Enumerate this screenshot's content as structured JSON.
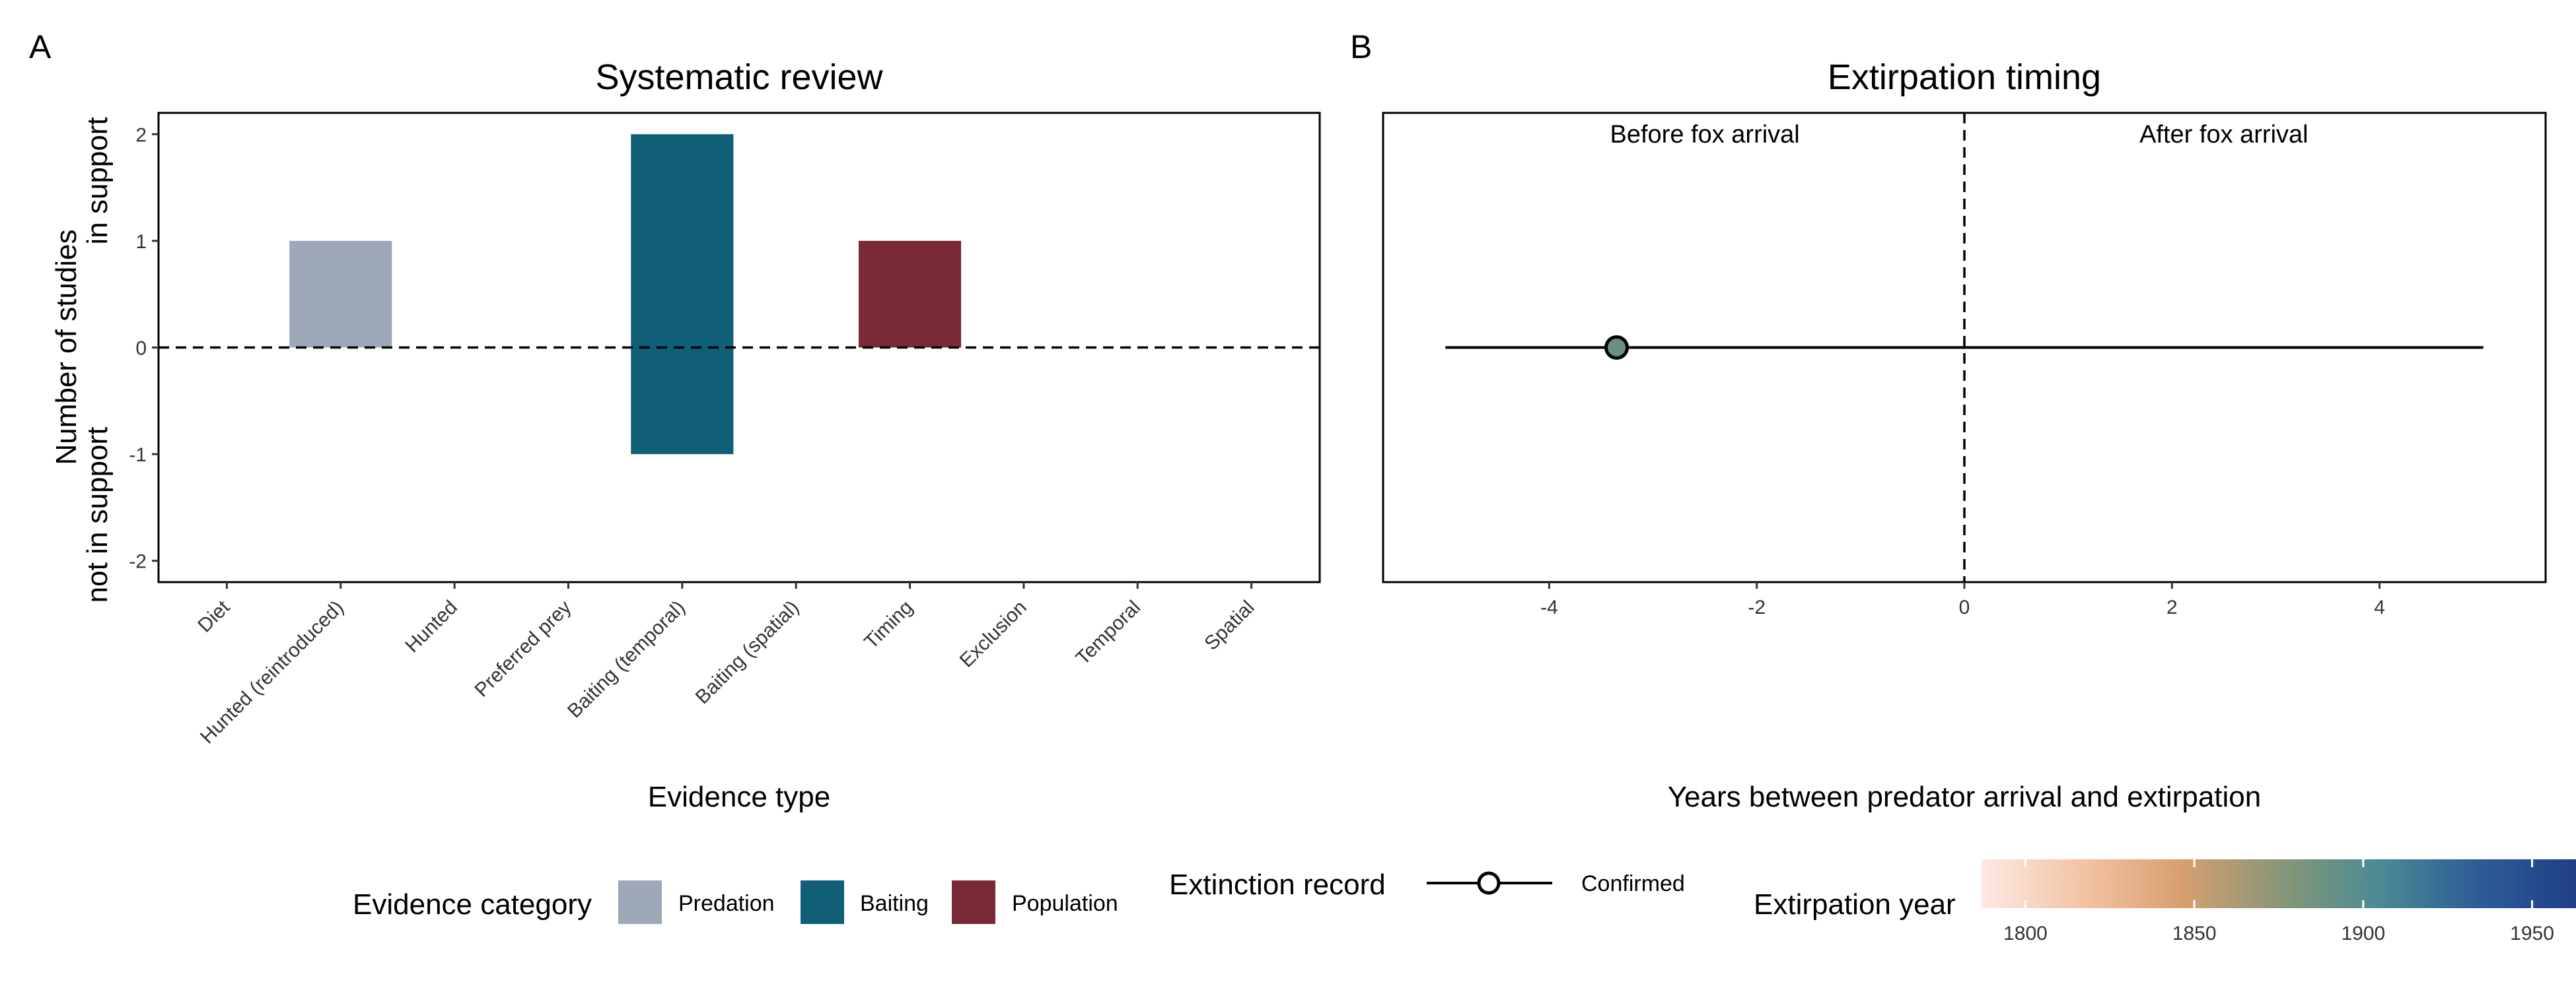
{
  "panels": {
    "a": {
      "tag": "A",
      "title": "Systematic review"
    },
    "b": {
      "tag": "B",
      "title": "Extirpation timing"
    }
  },
  "chart_data": [
    {
      "type": "bar",
      "title": "Systematic review",
      "xlabel": "Evidence type",
      "ylabel_top": "in support",
      "ylabel_mid": "Number of studies",
      "ylabel_bottom": "not in support",
      "ylim": [
        -2.2,
        2.2
      ],
      "yticks": [
        -2,
        -1,
        0,
        1,
        2
      ],
      "categories": [
        "Diet",
        "Hunted (reintroduced)",
        "Hunted",
        "Preferred prey",
        "Baiting (temporal)",
        "Baiting (spatial)",
        "Timing",
        "Exclusion",
        "Temporal",
        "Spatial"
      ],
      "bars": [
        {
          "category": "Hunted (reintroduced)",
          "value": 1,
          "group": "Predation"
        },
        {
          "category": "Baiting (temporal)",
          "value": 2,
          "group": "Baiting"
        },
        {
          "category": "Baiting (temporal)",
          "value": -1,
          "group": "Baiting"
        },
        {
          "category": "Timing",
          "value": 1,
          "group": "Population"
        }
      ],
      "reference_line": {
        "y": 0,
        "style": "dashed"
      },
      "grid": false
    },
    {
      "type": "scatter",
      "title": "Extirpation timing",
      "xlabel": "Years between predator arrival and extirpation",
      "xlim": [
        -5.6,
        5.6
      ],
      "xticks": [
        -4,
        -2,
        0,
        2,
        4
      ],
      "region_labels": {
        "left": "Before fox arrival",
        "right": "After fox arrival"
      },
      "reference_line": {
        "x": 0,
        "style": "dashed"
      },
      "points": [
        {
          "x": -3.35,
          "y": 0,
          "xmin": -5,
          "xmax": 5,
          "record": "Confirmed",
          "extirpation_year": 1890
        }
      ],
      "grid": false
    }
  ],
  "legend": {
    "category": {
      "title": "Evidence category",
      "items": [
        {
          "label": "Predation",
          "color": "#9fa8b8"
        },
        {
          "label": "Baiting",
          "color": "#115e77"
        },
        {
          "label": "Population",
          "color": "#7a2937"
        }
      ]
    },
    "record": {
      "title": "Extinction record",
      "items": [
        {
          "label": "Confirmed"
        }
      ]
    },
    "year": {
      "title": "Extirpation year",
      "range": [
        1787,
        1963
      ],
      "ticks": [
        1800,
        1850,
        1900,
        1950
      ],
      "colors": [
        "#fde9e4",
        "#f3c4a4",
        "#d9a070",
        "#8a9677",
        "#4b8b95",
        "#2d5d97",
        "#1f3f87"
      ]
    }
  }
}
